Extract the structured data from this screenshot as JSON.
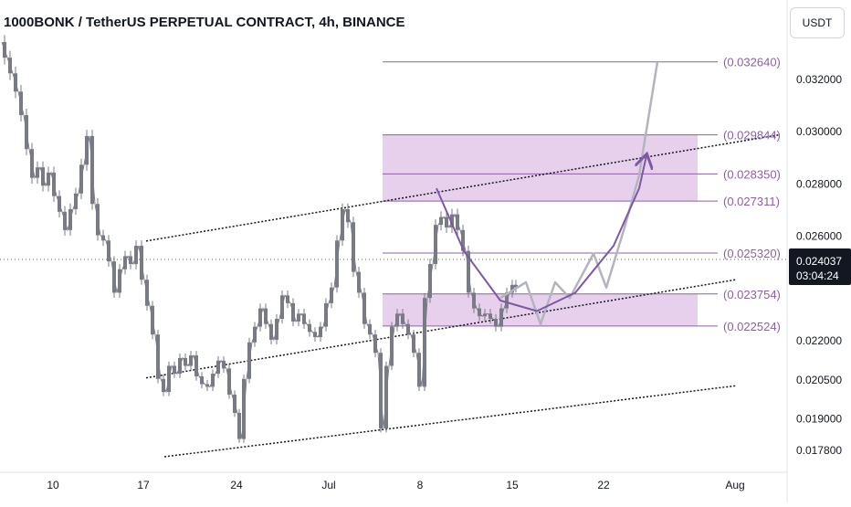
{
  "header": {
    "title": "1000BONK / TetherUS PERPETUAL CONTRACT, 4h, BINANCE",
    "currency_label": "USDT"
  },
  "price_axis": {
    "ticks": [
      "0.032000",
      "0.030000",
      "0.028000",
      "0.026000",
      "0.022000",
      "0.020500",
      "0.019000",
      "0.017800"
    ],
    "current_price": "0.024037",
    "countdown": "03:04:24"
  },
  "time_axis": {
    "ticks": [
      "10",
      "17",
      "24",
      "Jul",
      "8",
      "15",
      "22",
      "Aug"
    ]
  },
  "colors": {
    "level": "#8e5fa8",
    "zone_fill": "#e3c8e8",
    "trendline": "#131722",
    "candle": "#787b86",
    "projection": "#b2b5be",
    "arc": "#7e57a8",
    "current_price_bg": "#131722"
  },
  "chart_data": {
    "type": "line",
    "title": "1000BONK / TetherUS PERPETUAL CONTRACT, 4h, BINANCE",
    "xlabel": "",
    "ylabel": "",
    "ylim": [
      0.0172,
      0.0338
    ],
    "price_levels": [
      {
        "label": "(0.032640)",
        "value": 0.03264
      },
      {
        "label": "(0.029844)",
        "value": 0.029844
      },
      {
        "label": "(0.028350)",
        "value": 0.02835
      },
      {
        "label": "(0.027311)",
        "value": 0.027311
      },
      {
        "label": "(0.025320)",
        "value": 0.02532
      },
      {
        "label": "(0.023754)",
        "value": 0.023754
      },
      {
        "label": "(0.022524)",
        "value": 0.022524
      }
    ],
    "zones": [
      {
        "top": 0.029844,
        "bottom": 0.027311
      },
      {
        "top": 0.023754,
        "bottom": 0.022524
      }
    ],
    "price_series": [
      [
        2,
        0.0334
      ],
      [
        8,
        0.0328
      ],
      [
        14,
        0.0322
      ],
      [
        20,
        0.0315
      ],
      [
        26,
        0.0306
      ],
      [
        32,
        0.0293
      ],
      [
        38,
        0.0282
      ],
      [
        44,
        0.0286
      ],
      [
        50,
        0.0279
      ],
      [
        56,
        0.0284
      ],
      [
        62,
        0.0275
      ],
      [
        68,
        0.0269
      ],
      [
        74,
        0.0262
      ],
      [
        80,
        0.027
      ],
      [
        86,
        0.0276
      ],
      [
        92,
        0.0287
      ],
      [
        98,
        0.0298
      ],
      [
        104,
        0.0272
      ],
      [
        110,
        0.026
      ],
      [
        116,
        0.0258
      ],
      [
        122,
        0.025
      ],
      [
        128,
        0.0238
      ],
      [
        134,
        0.0247
      ],
      [
        140,
        0.0252
      ],
      [
        146,
        0.0249
      ],
      [
        152,
        0.0256
      ],
      [
        158,
        0.0243
      ],
      [
        164,
        0.0233
      ],
      [
        170,
        0.0222
      ],
      [
        176,
        0.0205
      ],
      [
        182,
        0.02
      ],
      [
        188,
        0.021
      ],
      [
        194,
        0.0207
      ],
      [
        200,
        0.0213
      ],
      [
        206,
        0.021
      ],
      [
        212,
        0.0214
      ],
      [
        218,
        0.0206
      ],
      [
        224,
        0.0203
      ],
      [
        230,
        0.0202
      ],
      [
        236,
        0.0207
      ],
      [
        242,
        0.0212
      ],
      [
        248,
        0.0209
      ],
      [
        254,
        0.0199
      ],
      [
        260,
        0.0192
      ],
      [
        265,
        0.0182
      ],
      [
        270,
        0.0205
      ],
      [
        276,
        0.0219
      ],
      [
        282,
        0.0225
      ],
      [
        288,
        0.0232
      ],
      [
        294,
        0.0226
      ],
      [
        300,
        0.022
      ],
      [
        306,
        0.0228
      ],
      [
        312,
        0.0237
      ],
      [
        318,
        0.0234
      ],
      [
        324,
        0.0227
      ],
      [
        330,
        0.023
      ],
      [
        336,
        0.0226
      ],
      [
        342,
        0.0223
      ],
      [
        348,
        0.0221
      ],
      [
        354,
        0.0225
      ],
      [
        360,
        0.0234
      ],
      [
        366,
        0.024
      ],
      [
        372,
        0.0258
      ],
      [
        378,
        0.027
      ],
      [
        384,
        0.0265
      ],
      [
        390,
        0.0246
      ],
      [
        396,
        0.0238
      ],
      [
        402,
        0.0226
      ],
      [
        408,
        0.0222
      ],
      [
        414,
        0.0215
      ],
      [
        420,
        0.0186
      ],
      [
        426,
        0.021
      ],
      [
        432,
        0.0225
      ],
      [
        438,
        0.023
      ],
      [
        444,
        0.0226
      ],
      [
        450,
        0.0222
      ],
      [
        456,
        0.0215
      ],
      [
        462,
        0.0202
      ],
      [
        468,
        0.0236
      ],
      [
        474,
        0.0249
      ],
      [
        480,
        0.0264
      ],
      [
        486,
        0.0267
      ],
      [
        492,
        0.0263
      ],
      [
        498,
        0.0268
      ],
      [
        504,
        0.0262
      ],
      [
        510,
        0.0254
      ],
      [
        516,
        0.0238
      ],
      [
        522,
        0.0232
      ],
      [
        528,
        0.0229
      ],
      [
        534,
        0.023
      ],
      [
        540,
        0.0228
      ],
      [
        546,
        0.0225
      ],
      [
        552,
        0.0232
      ],
      [
        558,
        0.0238
      ],
      [
        564,
        0.0241
      ],
      [
        568,
        0.024
      ]
    ],
    "channels": [
      [
        [
          160,
          0.02578
        ],
        [
          854,
          0.02985
        ]
      ],
      [
        [
          160,
          0.02054
        ],
        [
          806,
          0.0243
        ]
      ],
      [
        [
          180,
          0.01752
        ],
        [
          806,
          0.02024
        ]
      ]
    ],
    "projection_path": [
      [
        548,
        0.0236
      ],
      [
        576,
        0.0242
      ],
      [
        592,
        0.0226
      ],
      [
        608,
        0.0242
      ],
      [
        624,
        0.0236
      ],
      [
        650,
        0.0253
      ],
      [
        664,
        0.024
      ],
      [
        684,
        0.0263
      ],
      [
        700,
        0.0283
      ],
      [
        720,
        0.03264
      ]
    ],
    "arc_path": [
      [
        478,
        0.0278
      ],
      [
        508,
        0.0254
      ],
      [
        548,
        0.0235
      ],
      [
        588,
        0.0231
      ],
      [
        630,
        0.0238
      ],
      [
        672,
        0.0256
      ],
      [
        700,
        0.0278
      ],
      [
        708,
        0.02905
      ]
    ],
    "last_price": 0.024037
  }
}
